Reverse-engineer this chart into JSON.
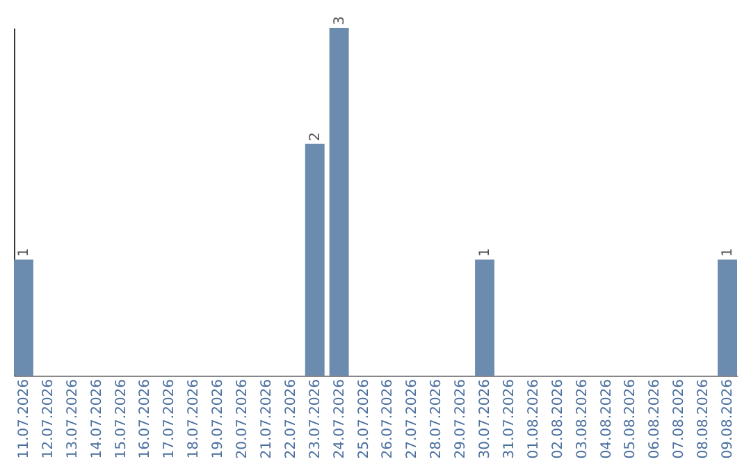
{
  "chart_data": {
    "type": "bar",
    "categories": [
      "11.07.2026",
      "12.07.2026",
      "13.07.2026",
      "14.07.2026",
      "15.07.2026",
      "16.07.2026",
      "17.07.2026",
      "18.07.2026",
      "19.07.2026",
      "20.07.2026",
      "21.07.2026",
      "22.07.2026",
      "23.07.2026",
      "24.07.2026",
      "25.07.2026",
      "26.07.2026",
      "27.07.2026",
      "28.07.2026",
      "29.07.2026",
      "30.07.2026",
      "31.07.2026",
      "01.08.2026",
      "02.08.2026",
      "03.08.2026",
      "04.08.2026",
      "05.08.2026",
      "06.08.2026",
      "07.08.2026",
      "08.08.2026",
      "09.08.2026"
    ],
    "values": [
      1,
      0,
      0,
      0,
      0,
      0,
      0,
      0,
      0,
      0,
      0,
      0,
      2,
      3,
      0,
      0,
      0,
      0,
      0,
      1,
      0,
      0,
      0,
      0,
      0,
      0,
      0,
      0,
      0,
      1
    ],
    "value_labels": [
      "1",
      null,
      null,
      null,
      null,
      null,
      null,
      null,
      null,
      null,
      null,
      null,
      "2",
      "3",
      null,
      null,
      null,
      null,
      null,
      "1",
      null,
      null,
      null,
      null,
      null,
      null,
      null,
      null,
      null,
      "1"
    ],
    "color": "#6b8cae",
    "tick_labels": "x"
  }
}
